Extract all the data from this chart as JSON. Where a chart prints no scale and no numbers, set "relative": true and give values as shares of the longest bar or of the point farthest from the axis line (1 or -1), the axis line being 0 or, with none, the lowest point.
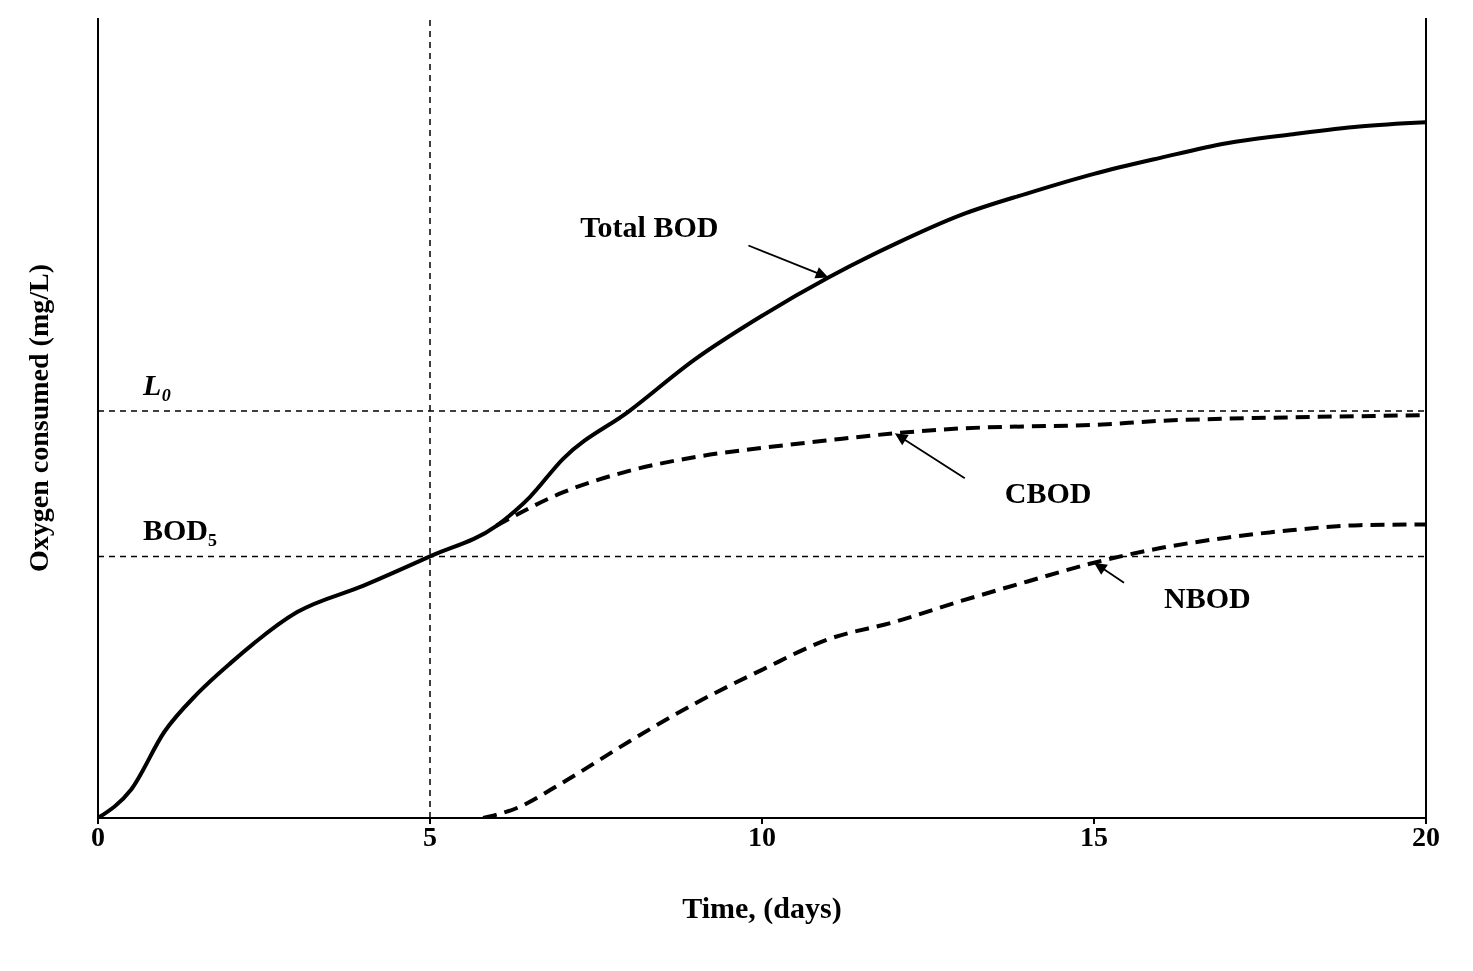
{
  "chart_data": {
    "type": "line",
    "relative": true,
    "xlabel": "Time, (days)",
    "ylabel": "Oxygen consumed (mg/L)",
    "xlim": [
      0,
      20
    ],
    "xticks": [
      0,
      5,
      10,
      15,
      20
    ],
    "marker": "none",
    "series": [
      {
        "name": "Total BOD",
        "color": "#000000",
        "line_style": "solid",
        "x": [
          0,
          0.5,
          1,
          1.5,
          2,
          3,
          4,
          5,
          6,
          6.5,
          7,
          8,
          9,
          10,
          11,
          12,
          13,
          14,
          15,
          16,
          17,
          18,
          19,
          20
        ],
        "values": [
          0,
          0.041,
          0.124,
          0.179,
          0.223,
          0.296,
          0.334,
          0.376,
          0.42,
          0.461,
          0.516,
          0.585,
          0.66,
          0.722,
          0.777,
          0.825,
          0.867,
          0.898,
          0.926,
          0.949,
          0.97,
          0.983,
          0.994,
          1
        ]
      },
      {
        "name": "CBOD",
        "color": "#000000",
        "line_style": "dashed",
        "x": [
          6,
          7,
          8,
          9,
          10,
          11,
          12,
          13,
          14,
          15,
          16,
          17,
          18,
          20
        ],
        "values": [
          0.42,
          0.468,
          0.499,
          0.519,
          0.532,
          0.543,
          0.553,
          0.56,
          0.563,
          0.565,
          0.571,
          0.574,
          0.576,
          0.579
        ]
      },
      {
        "name": "NBOD",
        "color": "#000000",
        "line_style": "dashed",
        "x": [
          5.8,
          6.3,
          7,
          8,
          9,
          10,
          11,
          12,
          13,
          14,
          15,
          16,
          17,
          18,
          19,
          20
        ],
        "values": [
          0,
          0.014,
          0.051,
          0.11,
          0.165,
          0.213,
          0.257,
          0.282,
          0.312,
          0.34,
          0.367,
          0.388,
          0.403,
          0.414,
          0.421,
          0.422
        ]
      }
    ],
    "ref_lines": [
      {
        "axis": "y",
        "value": 0.585,
        "label": "L₀",
        "line_style": "dashed",
        "color": "#000000"
      },
      {
        "axis": "y",
        "value": 0.376,
        "label": "BOD₅",
        "line_style": "dashed",
        "color": "#000000"
      },
      {
        "axis": "x",
        "value": 5,
        "label": null,
        "line_style": "dashed",
        "color": "#000000"
      }
    ]
  }
}
